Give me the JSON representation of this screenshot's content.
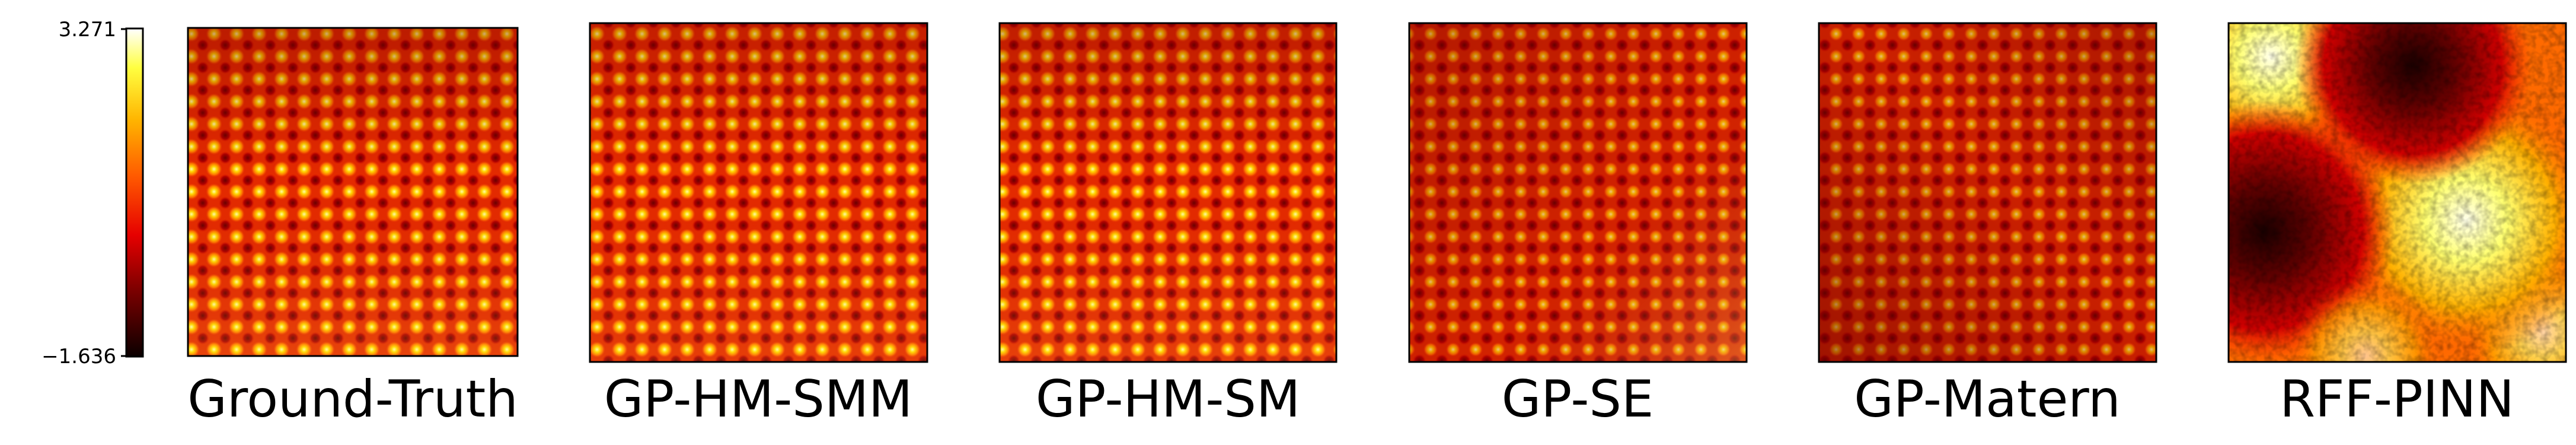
{
  "chart_data": {
    "type": "heatmap",
    "colormap": "hot",
    "colorbar": {
      "min": -1.636,
      "max": 3.271,
      "tick_labels": [
        "3.271",
        "−1.636"
      ]
    },
    "panels": [
      {
        "title": "Ground-Truth",
        "pattern": "periodic-grid",
        "grid_cells": 15
      },
      {
        "title": "GP-HM-SMM",
        "pattern": "periodic-grid",
        "grid_cells": 15
      },
      {
        "title": "GP-HM-SM",
        "pattern": "periodic-grid",
        "grid_cells": 15
      },
      {
        "title": "GP-SE",
        "pattern": "periodic-grid",
        "grid_cells": 15
      },
      {
        "title": "GP-Matern",
        "pattern": "periodic-grid",
        "grid_cells": 15
      },
      {
        "title": "RFF-PINN",
        "pattern": "smooth-blobs",
        "grid_cells": 2
      }
    ]
  }
}
